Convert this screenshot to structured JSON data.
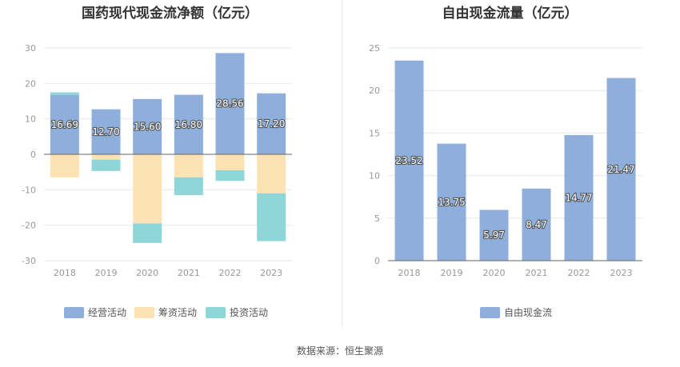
{
  "source": "数据来源：恒生聚源",
  "chart_data": [
    {
      "type": "bar",
      "stacked": true,
      "title": "国药现代现金流净额（亿元）",
      "categories": [
        "2018",
        "2019",
        "2020",
        "2021",
        "2022",
        "2023"
      ],
      "ylim": [
        -30,
        30
      ],
      "yticks": [
        30,
        20,
        10,
        0,
        -10,
        -20,
        -30
      ],
      "grid": true,
      "legend_position": "bottom",
      "series": [
        {
          "name": "经营活动",
          "color": "#8eaedb",
          "values": [
            16.69,
            12.7,
            15.6,
            16.8,
            28.56,
            17.2
          ],
          "labels": [
            "16.69",
            "12.70",
            "15.60",
            "16.80",
            "28.56",
            "17.20"
          ]
        },
        {
          "name": "筹资活动",
          "color": "#fde2b3",
          "values": [
            -6.5,
            -1.5,
            -19.5,
            -6.5,
            -4.5,
            -11.0
          ]
        },
        {
          "name": "投资活动",
          "color": "#8fd6d9",
          "values": [
            0.8,
            -3.2,
            -5.5,
            -5.0,
            -3.0,
            -13.5
          ]
        }
      ]
    },
    {
      "type": "bar",
      "title": "自由现金流量（亿元）",
      "categories": [
        "2018",
        "2019",
        "2020",
        "2021",
        "2022",
        "2023"
      ],
      "ylim": [
        0,
        25
      ],
      "yticks": [
        25,
        20,
        15,
        10,
        5,
        0
      ],
      "grid": true,
      "legend_position": "bottom",
      "series": [
        {
          "name": "自由现金流",
          "color": "#8eaedb",
          "values": [
            23.52,
            13.75,
            5.97,
            8.47,
            14.77,
            21.47
          ],
          "labels": [
            "23.52",
            "13.75",
            "5.97",
            "8.47",
            "14.77",
            "21.47"
          ]
        }
      ]
    }
  ]
}
